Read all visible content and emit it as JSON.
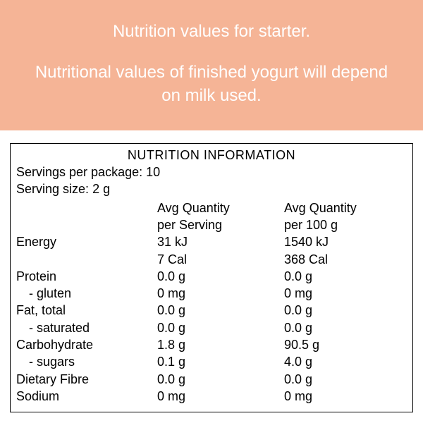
{
  "banner": {
    "line1": "Nutrition values for starter.",
    "line2": "Nutritional values of finished yogurt will depend on milk used.",
    "bg_color": "#f5b496",
    "text_color": "#ffffff",
    "font_size": 24
  },
  "panel": {
    "title": "NUTRITION INFORMATION",
    "servings_label": "Servings per package:",
    "servings_value": "10",
    "serving_size_label": "Serving size:",
    "serving_size_value": "2 g",
    "col1_header_l1": "Avg Quantity",
    "col1_header_l2": "per Serving",
    "col2_header_l1": "Avg Quantity",
    "col2_header_l2": "per 100 g",
    "border_color": "#000000",
    "font_size": 18
  },
  "rows": [
    {
      "label": "Energy",
      "indent": false,
      "serv": "31 kJ",
      "per100": "1540 kJ"
    },
    {
      "label": "",
      "indent": false,
      "serv": "7 Cal",
      "per100": "368 Cal"
    },
    {
      "label": "Protein",
      "indent": false,
      "serv": "0.0 g",
      "per100": "0.0 g"
    },
    {
      "label": "- gluten",
      "indent": true,
      "serv": "0 mg",
      "per100": "0 mg"
    },
    {
      "label": "Fat, total",
      "indent": false,
      "serv": "0.0 g",
      "per100": "0.0 g"
    },
    {
      "label": "- saturated",
      "indent": true,
      "serv": "0.0 g",
      "per100": "0.0 g"
    },
    {
      "label": "Carbohydrate",
      "indent": false,
      "serv": "1.8 g",
      "per100": "90.5 g"
    },
    {
      "label": "- sugars",
      "indent": true,
      "serv": "0.1 g",
      "per100": "4.0 g"
    },
    {
      "label": "Dietary Fibre",
      "indent": false,
      "serv": "0.0 g",
      "per100": "0.0 g"
    },
    {
      "label": "Sodium",
      "indent": false,
      "serv": "0 mg",
      "per100": "0 mg"
    }
  ]
}
